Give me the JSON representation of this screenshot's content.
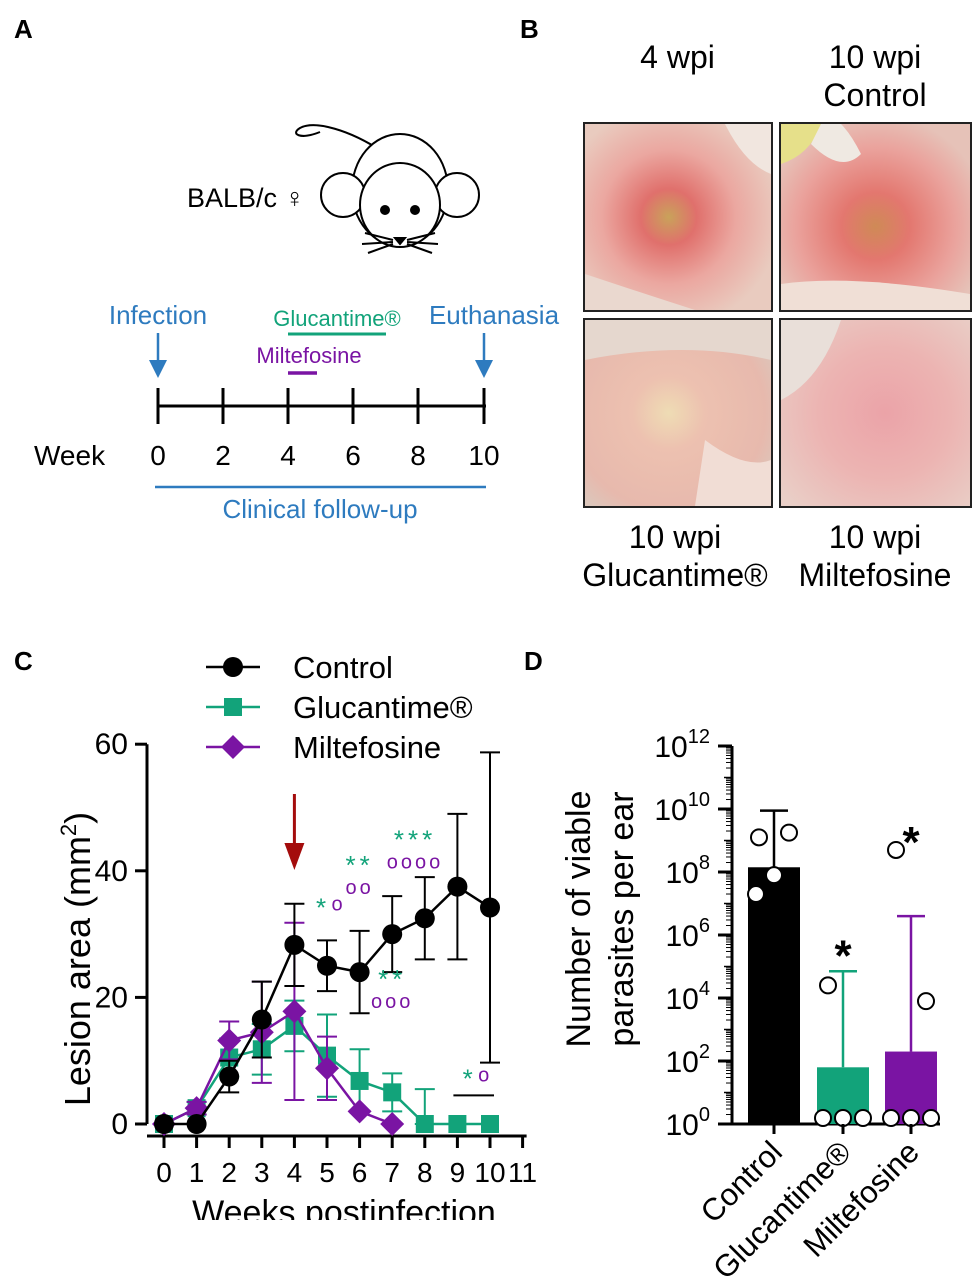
{
  "colors": {
    "timeline_blue": "#2e7bbf",
    "glucantime_green": "#12a37a",
    "miltefosine_purple": "#7a14a3",
    "arrow_red": "#a40c0c",
    "black": "#000000"
  },
  "panel_a": {
    "label": "A",
    "mouse_strain": "BALB/c ♀",
    "infection_label": "Infection",
    "euthanasia_label": "Euthanasia",
    "glucantime_label": "Glucantime®",
    "miltefosine_label": "Miltefosine",
    "week_label": "Week",
    "weeks": [
      "0",
      "2",
      "4",
      "6",
      "8",
      "10"
    ],
    "glucantime_weeks": [
      4,
      7
    ],
    "miltefosine_weeks": [
      4,
      5
    ],
    "follow_up_label": "Clinical follow-up",
    "mouse_icon": "mouse-icon"
  },
  "panel_b": {
    "label": "B",
    "top_left_caption": "4 wpi",
    "top_right_caption_1": "10 wpi",
    "top_right_caption_2": "Control",
    "bottom_left_caption_1": "10 wpi",
    "bottom_left_caption_2": "Glucantime®",
    "bottom_right_caption_1": "10 wpi",
    "bottom_right_caption_2": "Miltefosine"
  },
  "panel_c": {
    "label": "C"
  },
  "panel_d": {
    "label": "D"
  },
  "chart_data": [
    {
      "type": "line",
      "panel": "C",
      "xlabel": "Weeks postinfection",
      "ylabel": "Lesion area (mm²)",
      "ylabel_main": "Lesion area (mm",
      "ylabel_sup": "2",
      "ylabel_close": ")",
      "xlim": [
        0,
        11
      ],
      "ylim": [
        0,
        60
      ],
      "x_ticks": [
        "0",
        "1",
        "2",
        "3",
        "4",
        "5",
        "6",
        "7",
        "8",
        "9",
        "10",
        "11"
      ],
      "y_ticks": [
        "0",
        "20",
        "40",
        "60"
      ],
      "treatment_arrow_week": 4,
      "series": [
        {
          "name": "Control",
          "color": "#000000",
          "marker": "circle",
          "x": [
            0,
            1,
            2,
            3,
            4,
            5,
            6,
            7,
            8,
            9,
            10
          ],
          "values": [
            0,
            0,
            7.5,
            16.5,
            28.3,
            25,
            24,
            30,
            32.5,
            37.5,
            34.2
          ],
          "error": [
            0,
            0,
            2.5,
            6,
            6.5,
            4,
            6.5,
            6,
            6.5,
            11.5,
            24.5
          ]
        },
        {
          "name": "Glucantime®",
          "color": "#12a37a",
          "marker": "square",
          "x": [
            0,
            1,
            2,
            3,
            4,
            5,
            6,
            7,
            8,
            9,
            10
          ],
          "values": [
            0,
            2.5,
            10.5,
            11.8,
            15.5,
            10.8,
            6.8,
            5,
            0,
            0,
            0
          ],
          "error": [
            0,
            1,
            3,
            4,
            4,
            6.5,
            5,
            3,
            5.5,
            0,
            0
          ]
        },
        {
          "name": "Miltefosine",
          "color": "#7a14a3",
          "marker": "diamond",
          "x": [
            0,
            1,
            2,
            3,
            4,
            5,
            6,
            7
          ],
          "values": [
            0,
            2.5,
            13.2,
            14.5,
            17.8,
            8.8,
            2,
            0
          ],
          "error": [
            0,
            1,
            3,
            8,
            14,
            5,
            0,
            0
          ]
        }
      ],
      "annotations": [
        {
          "week": 5,
          "y": 35,
          "stars": "*",
          "circles": "o",
          "star_color": "#12a37a",
          "circle_color": "#7a14a3"
        },
        {
          "week": 6,
          "y": 39.5,
          "stars": "**",
          "circles": "oo",
          "star_color": "#12a37a",
          "circle_color": "#7a14a3",
          "stacked": true
        },
        {
          "week": 7.7,
          "y": 43.5,
          "stars": "***",
          "circles": "oooo",
          "star_color": "#12a37a",
          "circle_color": "#7a14a3",
          "stacked": true
        },
        {
          "week": 7,
          "y": 21.5,
          "stars": "**",
          "circles": "ooo",
          "star_color": "#12a37a",
          "circle_color": "#7a14a3",
          "stacked": true
        },
        {
          "week": 9.5,
          "y": 8,
          "stars": "*",
          "circles": "o",
          "star_color": "#12a37a",
          "circle_color": "#7a14a3",
          "underline": [
            9,
            10
          ]
        }
      ]
    },
    {
      "type": "bar",
      "panel": "D",
      "ylabel_line1": "Number of viable",
      "ylabel_line2": "parasites per ear",
      "yscale": "log10",
      "ylim_exponents": [
        0,
        12
      ],
      "y_tick_exponents": [
        "0",
        "2",
        "4",
        "6",
        "8",
        "10",
        "12"
      ],
      "y_tick_base": "10",
      "categories": [
        "Control",
        "Glucantime®",
        "Miltefosine"
      ],
      "colors": [
        "#000000",
        "#12a37a",
        "#7a14a3"
      ],
      "values_log10": [
        8.15,
        1.8,
        2.3
      ],
      "error_upper_log10": [
        9.95,
        4.85,
        6.6
      ],
      "points_log10": [
        [
          9.1,
          9.25,
          7.9,
          7.3
        ],
        [
          4.4,
          0,
          0,
          0
        ],
        [
          8.7,
          3.9,
          0,
          0,
          0
        ]
      ],
      "significance": [
        "",
        "*",
        "*"
      ],
      "significance_positions_log10": [
        0,
        5.7,
        9.3
      ]
    }
  ]
}
